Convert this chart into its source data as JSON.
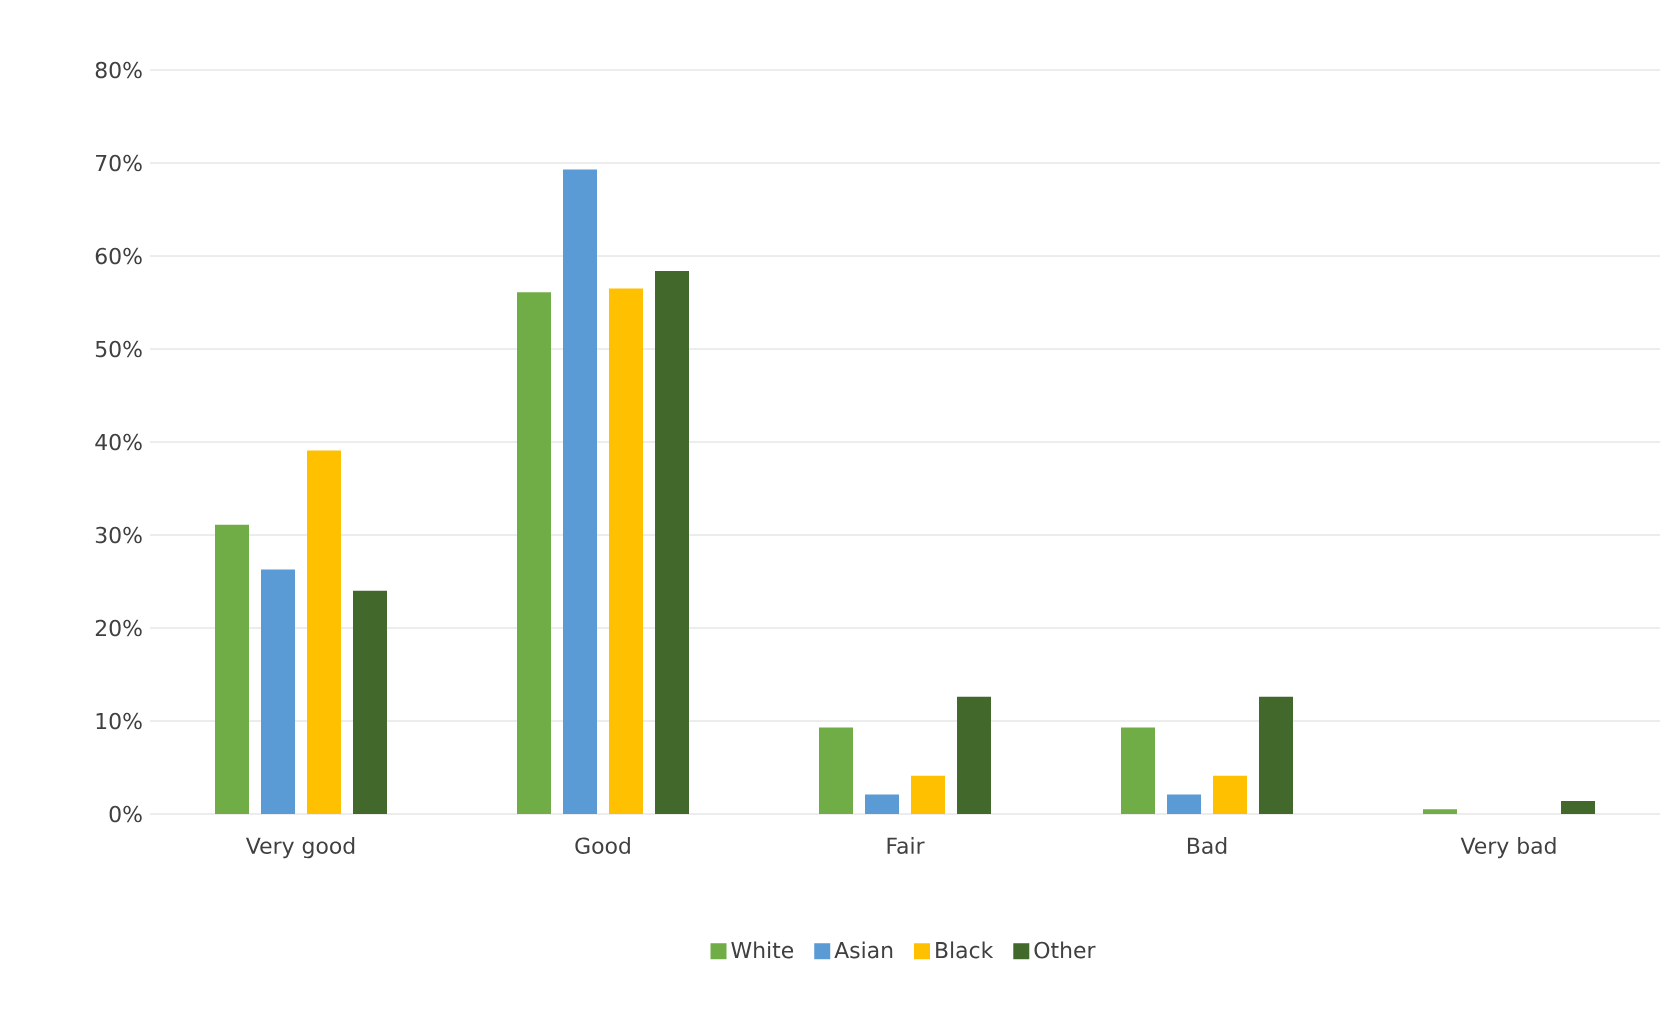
{
  "chart_data": {
    "type": "bar",
    "categories": [
      "Very good",
      "Good",
      "Fair",
      "Bad",
      "Very bad"
    ],
    "series": [
      {
        "name": "White",
        "color": "#70ad47",
        "values": [
          31.1,
          56.1,
          9.3,
          9.3,
          0.5
        ]
      },
      {
        "name": "Asian",
        "color": "#5b9bd5",
        "values": [
          26.3,
          69.3,
          2.1,
          2.1,
          0
        ]
      },
      {
        "name": "Black",
        "color": "#ffc000",
        "values": [
          39.1,
          56.5,
          4.1,
          4.1,
          0
        ]
      },
      {
        "name": "Other",
        "color": "#43682b",
        "values": [
          24.0,
          58.4,
          12.6,
          12.6,
          1.4
        ]
      }
    ],
    "ylim": [
      0,
      80
    ],
    "yticks": [
      {
        "value": 0,
        "label": "0%"
      },
      {
        "value": 10,
        "label": "10%"
      },
      {
        "value": 20,
        "label": "20%"
      },
      {
        "value": 30,
        "label": "30%"
      },
      {
        "value": 40,
        "label": "40%"
      },
      {
        "value": 50,
        "label": "50%"
      },
      {
        "value": 60,
        "label": "60%"
      },
      {
        "value": 70,
        "label": "70%"
      },
      {
        "value": 80,
        "label": "80%"
      }
    ],
    "grid": "y",
    "legend": "bottom"
  }
}
